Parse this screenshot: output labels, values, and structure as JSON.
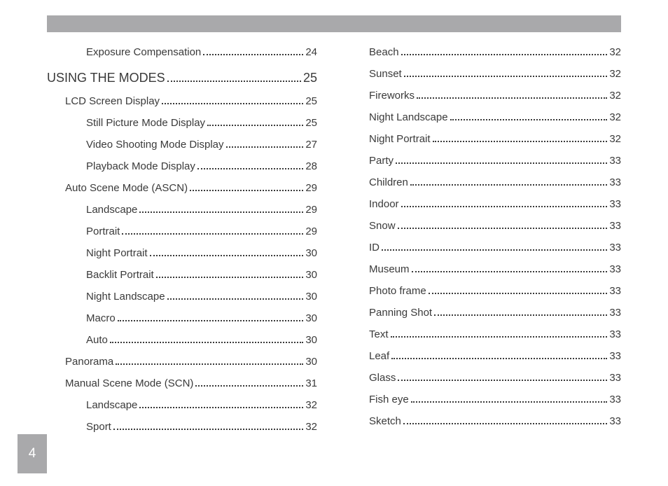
{
  "page_number": "4",
  "columns": {
    "left": [
      {
        "level": "lvl-2",
        "label": "Exposure Compensation",
        "page": "24"
      },
      {
        "level": "lvl-heading",
        "label": "USING THE MODES",
        "page": "25"
      },
      {
        "level": "lvl-1",
        "label": "LCD Screen Display",
        "page": "25"
      },
      {
        "level": "lvl-2",
        "label": "Still Picture Mode Display",
        "page": "25"
      },
      {
        "level": "lvl-2",
        "label": "Video Shooting Mode Display",
        "page": "27"
      },
      {
        "level": "lvl-2",
        "label": "Playback Mode Display",
        "page": "28"
      },
      {
        "level": "lvl-1",
        "label": "Auto Scene Mode (ASCN)",
        "page": "29"
      },
      {
        "level": "lvl-2",
        "label": "Landscape",
        "page": "29"
      },
      {
        "level": "lvl-2",
        "label": "Portrait",
        "page": "29"
      },
      {
        "level": "lvl-2",
        "label": "Night Portrait",
        "page": "30"
      },
      {
        "level": "lvl-2",
        "label": "Backlit Portrait",
        "page": "30"
      },
      {
        "level": "lvl-2",
        "label": "Night Landscape",
        "page": "30"
      },
      {
        "level": "lvl-2",
        "label": "Macro",
        "page": "30"
      },
      {
        "level": "lvl-2",
        "label": "Auto",
        "page": "30"
      },
      {
        "level": "lvl-1",
        "label": "Panorama",
        "page": "30"
      },
      {
        "level": "lvl-1",
        "label": "Manual Scene Mode (SCN)",
        "page": "31"
      },
      {
        "level": "lvl-2",
        "label": "Landscape",
        "page": "32"
      },
      {
        "level": "lvl-2",
        "label": "Sport",
        "page": "32"
      }
    ],
    "right": [
      {
        "level": "lvl-right",
        "label": "Beach",
        "page": "32"
      },
      {
        "level": "lvl-right",
        "label": "Sunset",
        "page": "32"
      },
      {
        "level": "lvl-right",
        "label": "Fireworks",
        "page": "32"
      },
      {
        "level": "lvl-right",
        "label": "Night Landscape",
        "page": "32"
      },
      {
        "level": "lvl-right",
        "label": "Night Portrait",
        "page": "32"
      },
      {
        "level": "lvl-right",
        "label": "Party",
        "page": "33"
      },
      {
        "level": "lvl-right",
        "label": "Children",
        "page": "33"
      },
      {
        "level": "lvl-right",
        "label": "Indoor",
        "page": "33"
      },
      {
        "level": "lvl-right",
        "label": "Snow",
        "page": "33"
      },
      {
        "level": "lvl-right",
        "label": "ID",
        "page": "33"
      },
      {
        "level": "lvl-right",
        "label": "Museum",
        "page": "33"
      },
      {
        "level": "lvl-right",
        "label": "Photo frame",
        "page": "33"
      },
      {
        "level": "lvl-right",
        "label": "Panning Shot",
        "page": "33"
      },
      {
        "level": "lvl-right",
        "label": "Text",
        "page": "33"
      },
      {
        "level": "lvl-right",
        "label": "Leaf",
        "page": "33"
      },
      {
        "level": "lvl-right",
        "label": "Glass",
        "page": "33"
      },
      {
        "level": "lvl-right",
        "label": "Fish eye",
        "page": "33"
      },
      {
        "level": "lvl-right",
        "label": "Sketch",
        "page": "33"
      }
    ]
  }
}
